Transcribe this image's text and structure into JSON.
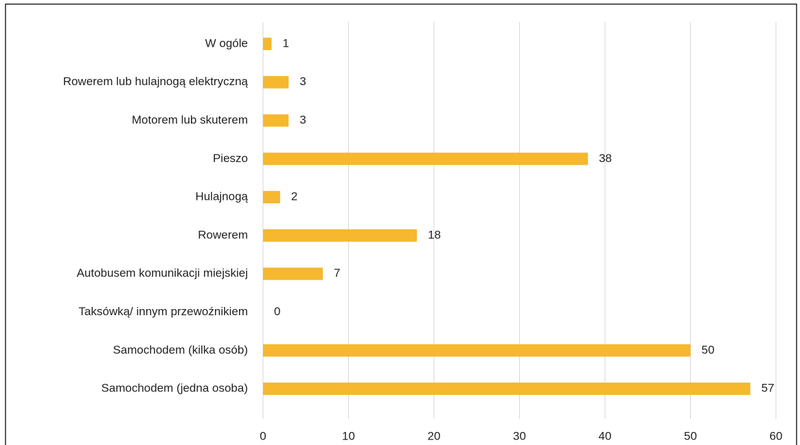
{
  "chart_data": {
    "type": "bar",
    "orientation": "horizontal",
    "categories": [
      "W ogóle",
      "Rowerem lub hulajnogą elektryczną",
      "Motorem lub skuterem",
      "Pieszo",
      "Hulajnogą",
      "Rowerem",
      "Autobusem komunikacji miejskiej",
      "Taksówką/ innym przewoźnikiem",
      "Samochodem (kilka osób)",
      "Samochodem (jedna osoba)"
    ],
    "values": [
      1,
      3,
      3,
      38,
      2,
      18,
      7,
      0,
      50,
      57
    ],
    "color": "#f5b82e",
    "xlim": [
      0,
      60
    ],
    "xticks": [
      0,
      10,
      20,
      30,
      40,
      50,
      60
    ],
    "grid": true,
    "data_labels": true
  }
}
